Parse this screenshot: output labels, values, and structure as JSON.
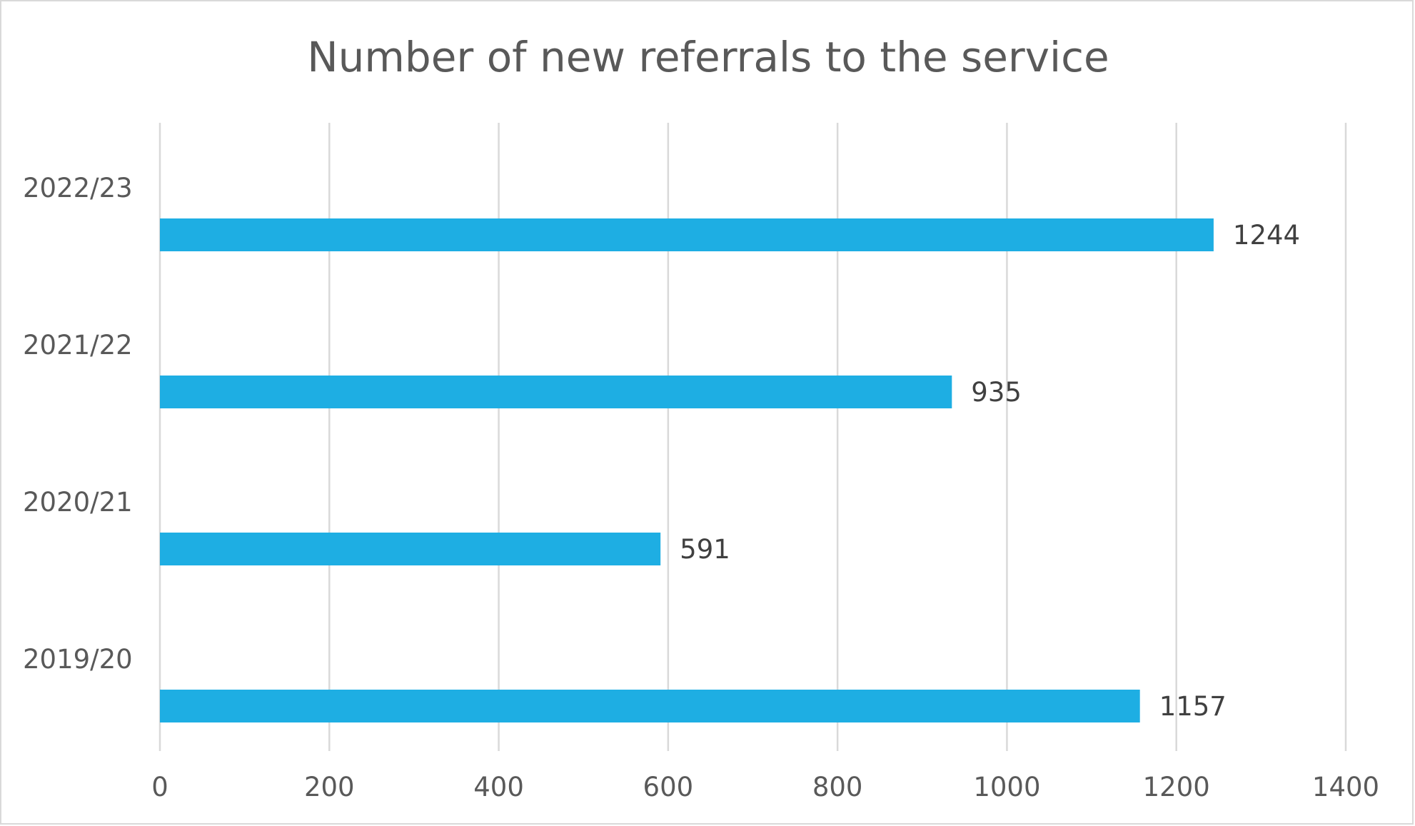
{
  "chart_data": {
    "type": "bar",
    "orientation": "horizontal",
    "title": "Number of new referrals to the service",
    "xlabel": "",
    "ylabel": "",
    "categories": [
      "2022/23",
      "2021/22",
      "2020/21",
      "2019/20"
    ],
    "values": [
      1244,
      935,
      591,
      1157
    ],
    "data_labels": [
      "1244",
      "935",
      "591",
      "1157"
    ],
    "xlim": [
      0,
      1400
    ],
    "x_ticks": [
      "0",
      "200",
      "400",
      "600",
      "800",
      "1000",
      "1200",
      "1400"
    ],
    "grid": true,
    "legend": "none",
    "bar_color": "#1eaee3"
  }
}
